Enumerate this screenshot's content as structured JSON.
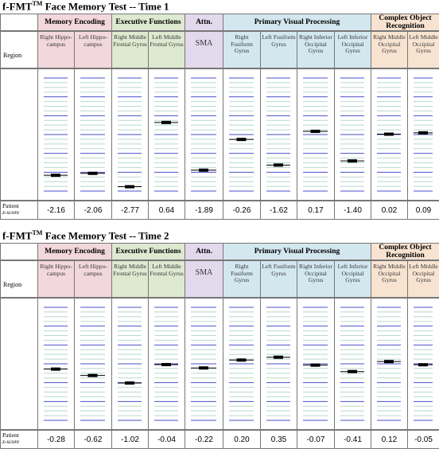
{
  "row_labels": {
    "region": "Region",
    "patient": "Patient",
    "zscore": "z-score"
  },
  "groups": [
    {
      "label": "Memory Encoding",
      "color": "#f2d7dc",
      "cols": 2
    },
    {
      "label": "Executive Functions",
      "color": "#dde9d0",
      "cols": 2
    },
    {
      "label": "Attn.",
      "color": "#e3d9ec",
      "cols": 1
    },
    {
      "label": "Primary Visual Processing",
      "color": "#d3e7ef",
      "cols": 4
    },
    {
      "label": "Complex Object Recognition",
      "color": "#f8e3d1",
      "cols": 2
    }
  ],
  "regions": [
    "Right Hippo-campus",
    "Left Hippo-campus",
    "Right Middle Frontal Gyrus",
    "Left Middle Frontal Gyrus",
    "SMA",
    "Right Fusiform Gyrus",
    "Left Fusiform Gyrus",
    "Right Inferior Occipital Gyrus",
    "Left Inferior Occipital Gyrus",
    "Right Middle Occipital Gyrus",
    "Left Middle Occipital Gyrus"
  ],
  "sections": [
    {
      "title_prefix": "f-FMT",
      "title_sup": "TM",
      "title_suffix": " Face Memory Test -- Time 1",
      "scores": [
        "-2.16",
        "-2.06",
        "-2.77",
        "0.64",
        "-1.89",
        "-0.26",
        "-1.62",
        "0.17",
        "-1.40",
        "0.02",
        "0.09"
      ],
      "values": [
        -2.16,
        -2.06,
        -2.77,
        0.64,
        -1.89,
        -0.26,
        -1.62,
        0.17,
        -1.4,
        0.02,
        0.09
      ]
    },
    {
      "title_prefix": "f-FMT",
      "title_sup": "TM",
      "title_suffix": " Face Memory Test -- Time 2",
      "scores": [
        "-0.28",
        "-0.62",
        "-1.02",
        "-0.04",
        "-0.22",
        "0.20",
        "0.35",
        "-0.07",
        "-0.41",
        "0.12",
        "-0.05"
      ],
      "values": [
        -0.28,
        -0.62,
        -1.02,
        -0.04,
        -0.22,
        0.2,
        0.35,
        -0.07,
        -0.41,
        0.12,
        -0.05
      ]
    }
  ],
  "colors": {
    "major_line": "#4a50c8",
    "minor_line": "#b9d8cf",
    "marker": "#000000"
  }
}
